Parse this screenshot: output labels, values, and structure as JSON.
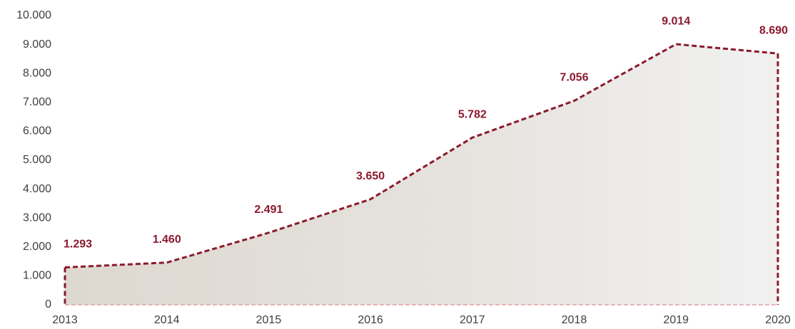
{
  "chart_data": {
    "type": "area",
    "categories": [
      "2013",
      "2014",
      "2015",
      "2016",
      "2017",
      "2018",
      "2019",
      "2020"
    ],
    "values": [
      1293,
      1460,
      2491,
      3650,
      5782,
      7056,
      9014,
      8690
    ],
    "value_labels": [
      "1.293",
      "1.460",
      "2.491",
      "3.650",
      "5.782",
      "7.056",
      "9.014",
      "8.690"
    ],
    "color": "#8b1a2e",
    "ylim": [
      0,
      10000
    ],
    "yticks": [
      0,
      {
        "value": 1000,
        "label": "1.000"
      },
      {
        "value": 2000,
        "label": "2.000"
      },
      {
        "value": 3000,
        "label": "3.000"
      },
      {
        "value": 4000,
        "label": "4.000"
      },
      {
        "value": 5000,
        "label": "5.000"
      },
      {
        "value": 6000,
        "label": "6.000"
      },
      {
        "value": 7000,
        "label": "7.000"
      },
      {
        "value": 8000,
        "label": "8.000"
      },
      {
        "value": 9000,
        "label": "9.000"
      },
      {
        "value": 10000,
        "label": "10.000"
      }
    ],
    "grid": false
  }
}
